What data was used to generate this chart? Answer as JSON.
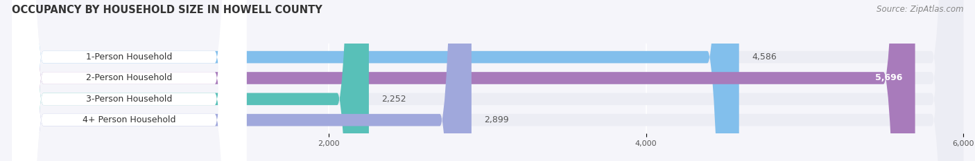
{
  "title": "OCCUPANCY BY HOUSEHOLD SIZE IN HOWELL COUNTY",
  "source": "Source: ZipAtlas.com",
  "categories": [
    "1-Person Household",
    "2-Person Household",
    "3-Person Household",
    "4+ Person Household"
  ],
  "values": [
    4586,
    5696,
    2252,
    2899
  ],
  "bar_colors": [
    "#82BFEC",
    "#A87BBB",
    "#58C0B8",
    "#A0A8DC"
  ],
  "bar_bg_color": "#ECEDF4",
  "label_bg_color": "#FFFFFF",
  "xlim_max": 6400,
  "data_max": 6000,
  "xticks": [
    2000,
    4000,
    6000
  ],
  "title_fontsize": 10.5,
  "source_fontsize": 8.5,
  "label_fontsize": 9,
  "value_fontsize": 9,
  "background_color": "#F5F5FA",
  "gap_color": "#F5F5FA"
}
